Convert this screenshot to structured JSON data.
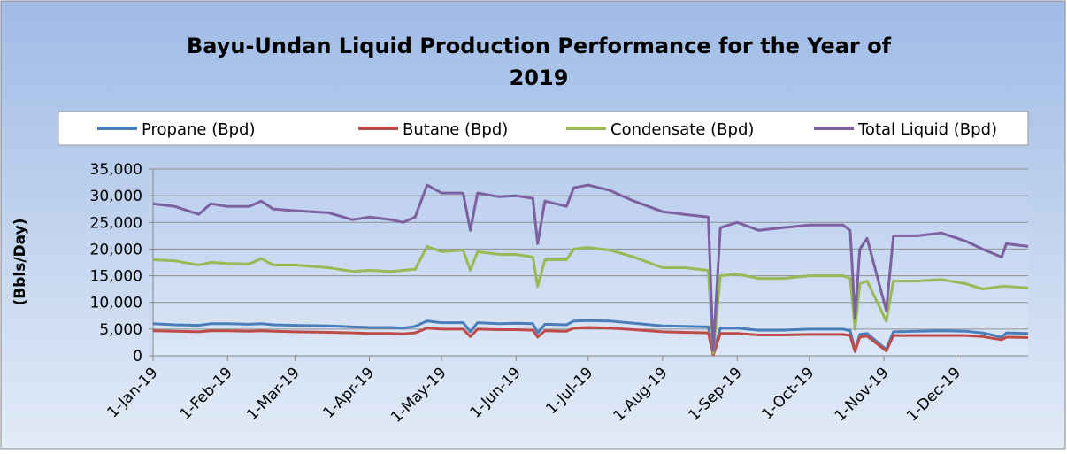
{
  "chart_data": {
    "type": "line",
    "title": "Bayu-Undan Liquid Production Performance for the Year of 2019",
    "y_label": "(Bbls/Day)",
    "x": [
      "2019-01-01",
      "2019-01-10",
      "2019-01-20",
      "2019-01-25",
      "2019-02-01",
      "2019-02-10",
      "2019-02-15",
      "2019-02-20",
      "2019-03-01",
      "2019-03-15",
      "2019-03-25",
      "2019-04-01",
      "2019-04-10",
      "2019-04-15",
      "2019-04-20",
      "2019-04-25",
      "2019-05-01",
      "2019-05-10",
      "2019-05-13",
      "2019-05-16",
      "2019-05-25",
      "2019-06-01",
      "2019-06-08",
      "2019-06-10",
      "2019-06-13",
      "2019-06-22",
      "2019-06-25",
      "2019-07-01",
      "2019-07-10",
      "2019-07-20",
      "2019-08-01",
      "2019-08-10",
      "2019-08-20",
      "2019-08-22",
      "2019-08-25",
      "2019-09-01",
      "2019-09-10",
      "2019-09-20",
      "2019-10-01",
      "2019-10-15",
      "2019-10-18",
      "2019-10-20",
      "2019-10-22",
      "2019-10-25",
      "2019-11-02",
      "2019-11-05",
      "2019-11-15",
      "2019-11-25",
      "2019-12-05",
      "2019-12-12",
      "2019-12-20",
      "2019-12-22",
      "2019-12-31"
    ],
    "series": [
      {
        "name": "Propane (Bpd)",
        "color": "#4a7ebb",
        "values": [
          6000,
          5800,
          5700,
          6000,
          6000,
          5900,
          6000,
          5800,
          5700,
          5600,
          5400,
          5300,
          5300,
          5200,
          5500,
          6500,
          6200,
          6200,
          4500,
          6200,
          6000,
          6100,
          6000,
          4300,
          5900,
          5800,
          6500,
          6600,
          6500,
          6100,
          5600,
          5500,
          5400,
          200,
          5200,
          5200,
          4800,
          4800,
          5000,
          5000,
          4700,
          1000,
          4000,
          4200,
          1200,
          4500,
          4600,
          4700,
          4600,
          4300,
          3500,
          4300,
          4200
        ]
      },
      {
        "name": "Butane (Bpd)",
        "color": "#be4b48",
        "values": [
          4700,
          4600,
          4500,
          4700,
          4700,
          4600,
          4700,
          4600,
          4500,
          4400,
          4300,
          4200,
          4200,
          4100,
          4300,
          5200,
          5000,
          5000,
          3600,
          5000,
          4900,
          4900,
          4800,
          3500,
          4700,
          4600,
          5200,
          5300,
          5200,
          4900,
          4500,
          4400,
          4300,
          100,
          4200,
          4200,
          3900,
          3900,
          4000,
          4000,
          3800,
          800,
          3500,
          3700,
          900,
          3800,
          3800,
          3800,
          3800,
          3600,
          3000,
          3500,
          3400
        ]
      },
      {
        "name": "Condensate (Bpd)",
        "color": "#98b954",
        "values": [
          18000,
          17800,
          17000,
          17500,
          17300,
          17200,
          18200,
          17000,
          17000,
          16500,
          15800,
          16000,
          15800,
          16000,
          16200,
          20500,
          19500,
          19800,
          16000,
          19500,
          19000,
          19000,
          18500,
          13000,
          18000,
          18000,
          20000,
          20300,
          19800,
          18500,
          16500,
          16500,
          16000,
          500,
          15000,
          15300,
          14500,
          14500,
          15000,
          15000,
          14500,
          5000,
          13500,
          14000,
          6500,
          14000,
          14000,
          14300,
          13500,
          12500,
          13000,
          13000,
          12700
        ]
      },
      {
        "name": "Total Liquid (Bpd)",
        "color": "#7d60a0",
        "values": [
          28500,
          28000,
          26500,
          28500,
          28000,
          28000,
          29000,
          27500,
          27200,
          26800,
          25500,
          26000,
          25500,
          25000,
          26000,
          32000,
          30500,
          30500,
          23500,
          30500,
          29800,
          30000,
          29500,
          21000,
          29000,
          28000,
          31500,
          32000,
          31000,
          29000,
          27000,
          26500,
          26000,
          1000,
          24000,
          25000,
          23500,
          24000,
          24500,
          24500,
          23500,
          7000,
          20000,
          22000,
          8500,
          22500,
          22500,
          23000,
          21500,
          20000,
          18500,
          21000,
          20500
        ]
      }
    ],
    "xlim": [
      "2019-01-01",
      "2019-12-31"
    ],
    "xticks": [
      {
        "value": "2019-01-01",
        "label": "1-Jan-19"
      },
      {
        "value": "2019-02-01",
        "label": "1-Feb-19"
      },
      {
        "value": "2019-03-01",
        "label": "1-Mar-19"
      },
      {
        "value": "2019-04-01",
        "label": "1-Apr-19"
      },
      {
        "value": "2019-05-01",
        "label": "1-May-19"
      },
      {
        "value": "2019-06-01",
        "label": "1-Jun-19"
      },
      {
        "value": "2019-07-01",
        "label": "1-Jul-19"
      },
      {
        "value": "2019-08-01",
        "label": "1-Aug-19"
      },
      {
        "value": "2019-09-01",
        "label": "1-Sep-19"
      },
      {
        "value": "2019-10-01",
        "label": "1-Oct-19"
      },
      {
        "value": "2019-11-01",
        "label": "1-Nov-19"
      },
      {
        "value": "2019-12-01",
        "label": "1-Dec-19"
      }
    ],
    "ylim": [
      0,
      35000
    ],
    "yticks": [
      0,
      {
        "value": 5000,
        "label": "5,000"
      },
      {
        "value": 10000,
        "label": "10,000"
      },
      {
        "value": 15000,
        "label": "15,000"
      },
      {
        "value": 20000,
        "label": "20,000"
      },
      {
        "value": 25000,
        "label": "25,000"
      },
      {
        "value": 30000,
        "label": "30,000"
      },
      {
        "value": 35000,
        "label": "35,000"
      }
    ],
    "grid": true,
    "legend": "top"
  }
}
